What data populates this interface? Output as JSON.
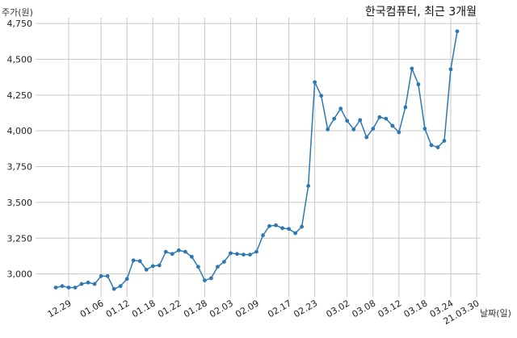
{
  "chart_data": {
    "type": "line",
    "title": "한국컴퓨터, 최근 3개월",
    "ylabel": "주가(원)",
    "xlabel": "날짜(일)",
    "ylim": [
      2840,
      4790
    ],
    "yticks": [
      3000,
      3250,
      3500,
      3750,
      4000,
      4250,
      4500,
      4750
    ],
    "ytick_labels": [
      "3,000",
      "3,250",
      "3,500",
      "3,750",
      "4,000",
      "4,250",
      "4,500",
      "4,750"
    ],
    "grid": true,
    "line_color": "#2e78b0",
    "xtick_labels": [
      "12.29",
      "01.06",
      "01.12",
      "01.18",
      "01.22",
      "01.28",
      "02.03",
      "02.09",
      "02.17",
      "02.23",
      "03.02",
      "03.08",
      "03.12",
      "03.18",
      "03.24",
      "21.03.30"
    ],
    "xtick_index": [
      2,
      7,
      11,
      15,
      19,
      23,
      27,
      31,
      36,
      40,
      45,
      49,
      53,
      57,
      61,
      65
    ],
    "values": [
      2905,
      2915,
      2905,
      2905,
      2930,
      2940,
      2930,
      2985,
      2985,
      2895,
      2915,
      2965,
      3095,
      3090,
      3030,
      3055,
      3060,
      3155,
      3140,
      3165,
      3155,
      3120,
      3050,
      2955,
      2970,
      3050,
      3085,
      3145,
      3140,
      3135,
      3135,
      3155,
      3270,
      3335,
      3340,
      3320,
      3315,
      3285,
      3330,
      3615,
      4340,
      4245,
      4010,
      4085,
      4155,
      4070,
      4010,
      4075,
      3955,
      4015,
      4095,
      4085,
      4035,
      3990,
      4165,
      4435,
      4325,
      4015,
      3900,
      3885,
      3930,
      4430,
      4695
    ]
  }
}
